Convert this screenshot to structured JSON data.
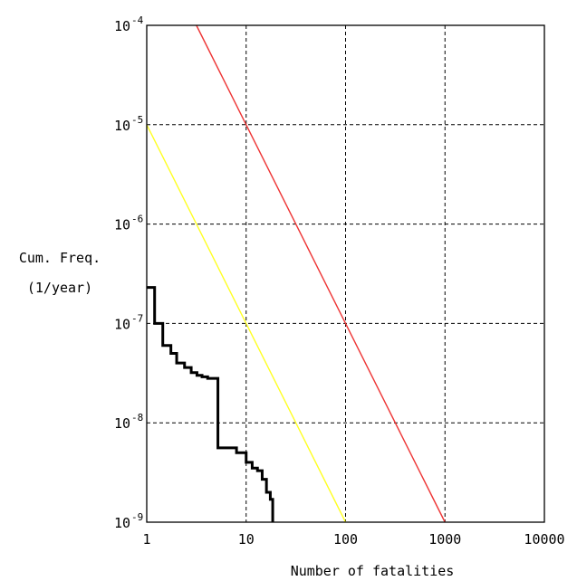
{
  "chart_data": {
    "type": "line",
    "xlabel": "Number of fatalities",
    "ylabel": [
      "Cum. Freq.",
      "(1/year)"
    ],
    "xscale": "log",
    "yscale": "log",
    "xlim": [
      1,
      10000
    ],
    "ylim": [
      1e-09,
      0.0001
    ],
    "grid": true,
    "x_ticks": [
      {
        "value": 1,
        "label": "1"
      },
      {
        "value": 10,
        "label": "10"
      },
      {
        "value": 100,
        "label": "100"
      },
      {
        "value": 1000,
        "label": "1000"
      },
      {
        "value": 10000,
        "label": "10000"
      }
    ],
    "y_ticks": [
      {
        "value": 0.0001,
        "base": "10",
        "exp": "-4"
      },
      {
        "value": 1e-05,
        "base": "10",
        "exp": "-5"
      },
      {
        "value": 1e-06,
        "base": "10",
        "exp": "-6"
      },
      {
        "value": 1e-07,
        "base": "10",
        "exp": "-7"
      },
      {
        "value": 1e-08,
        "base": "10",
        "exp": "-8"
      },
      {
        "value": 1e-09,
        "base": "10",
        "exp": "-9"
      }
    ],
    "series": [
      {
        "color": "#ee3333",
        "style": "line",
        "points": [
          [
            3.16,
            0.0001
          ],
          [
            1000,
            1e-09
          ]
        ]
      },
      {
        "color": "#ffff22",
        "style": "line",
        "points": [
          [
            1,
            1e-05
          ],
          [
            100,
            1e-09
          ]
        ]
      },
      {
        "color": "#000000",
        "style": "step",
        "points": [
          [
            1.0,
            2.3e-07
          ],
          [
            1.2,
            2.3e-07
          ],
          [
            1.2,
            1e-07
          ],
          [
            1.45,
            1e-07
          ],
          [
            1.45,
            6e-08
          ],
          [
            1.75,
            6e-08
          ],
          [
            1.75,
            5e-08
          ],
          [
            2.0,
            5e-08
          ],
          [
            2.0,
            4e-08
          ],
          [
            2.4,
            4e-08
          ],
          [
            2.4,
            3.6e-08
          ],
          [
            2.8,
            3.6e-08
          ],
          [
            2.8,
            3.2e-08
          ],
          [
            3.2,
            3.2e-08
          ],
          [
            3.2,
            3e-08
          ],
          [
            3.6,
            3e-08
          ],
          [
            3.6,
            2.9e-08
          ],
          [
            4.1,
            2.9e-08
          ],
          [
            4.1,
            2.8e-08
          ],
          [
            5.2,
            2.8e-08
          ],
          [
            5.2,
            5.6e-09
          ],
          [
            8.0,
            5.6e-09
          ],
          [
            8.0,
            5e-09
          ],
          [
            10.0,
            5e-09
          ],
          [
            10.0,
            4e-09
          ],
          [
            11.5,
            4e-09
          ],
          [
            11.5,
            3.5e-09
          ],
          [
            13.0,
            3.5e-09
          ],
          [
            13.0,
            3.3e-09
          ],
          [
            14.5,
            3.3e-09
          ],
          [
            14.5,
            2.7e-09
          ],
          [
            16.0,
            2.7e-09
          ],
          [
            16.0,
            2e-09
          ],
          [
            17.5,
            2e-09
          ],
          [
            17.5,
            1.7e-09
          ],
          [
            18.5,
            1.7e-09
          ],
          [
            18.5,
            1e-09
          ]
        ]
      }
    ]
  }
}
